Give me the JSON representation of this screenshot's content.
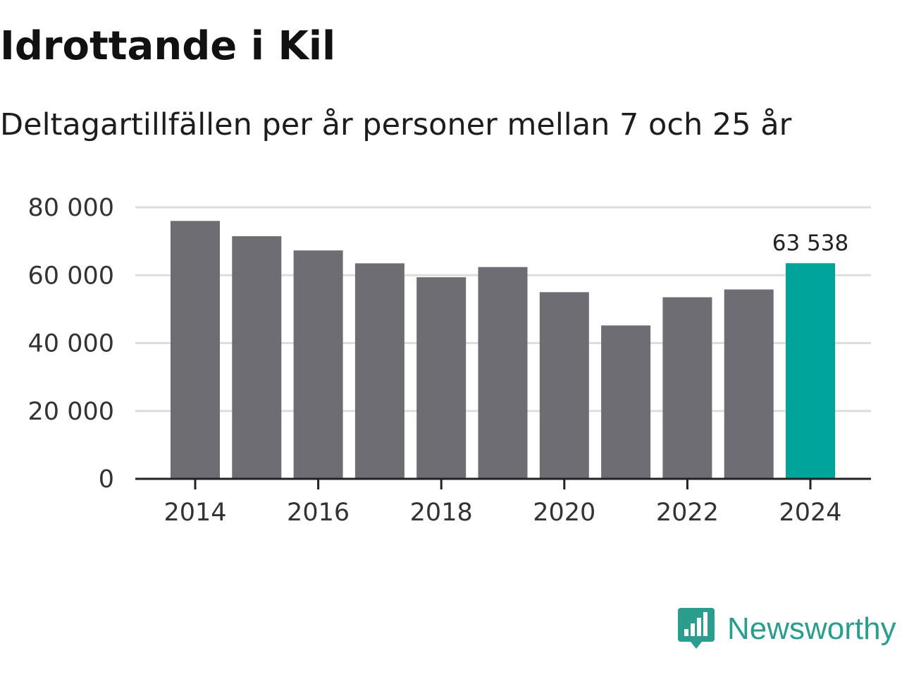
{
  "title": "Idrottande i Kil",
  "subtitle": "Deltagartillfällen per år personer mellan 7 och 25 år",
  "brand": {
    "name": "Newsworthy",
    "icon": "newsworthy-logo-icon"
  },
  "colors": {
    "bar": "#6e6d73",
    "highlight": "#00a49a",
    "grid": "#dddddd",
    "axis": "#222222",
    "tick_text": "#333333",
    "brand": "#2a9d8f"
  },
  "chart_data": {
    "type": "bar",
    "title": "Idrottande i Kil",
    "subtitle": "Deltagartillfällen per år personer mellan 7 och 25 år",
    "xlabel": "",
    "ylabel": "",
    "categories": [
      "2014",
      "2015",
      "2016",
      "2017",
      "2018",
      "2019",
      "2020",
      "2021",
      "2022",
      "2023",
      "2024"
    ],
    "values": [
      76000,
      71500,
      67300,
      63500,
      59400,
      62400,
      55000,
      45200,
      53500,
      55800,
      63538
    ],
    "highlight_index": 10,
    "data_labels": [
      {
        "index": 10,
        "text": "63 538"
      }
    ],
    "ylim": [
      0,
      80000
    ],
    "yticks": [
      0,
      20000,
      40000,
      60000,
      80000
    ],
    "ytick_labels": [
      "0",
      "20 000",
      "40 000",
      "60 000",
      "80 000"
    ],
    "xtick_labels": [
      "2014",
      "2016",
      "2018",
      "2020",
      "2022",
      "2024"
    ],
    "grid": true,
    "legend": "none"
  }
}
